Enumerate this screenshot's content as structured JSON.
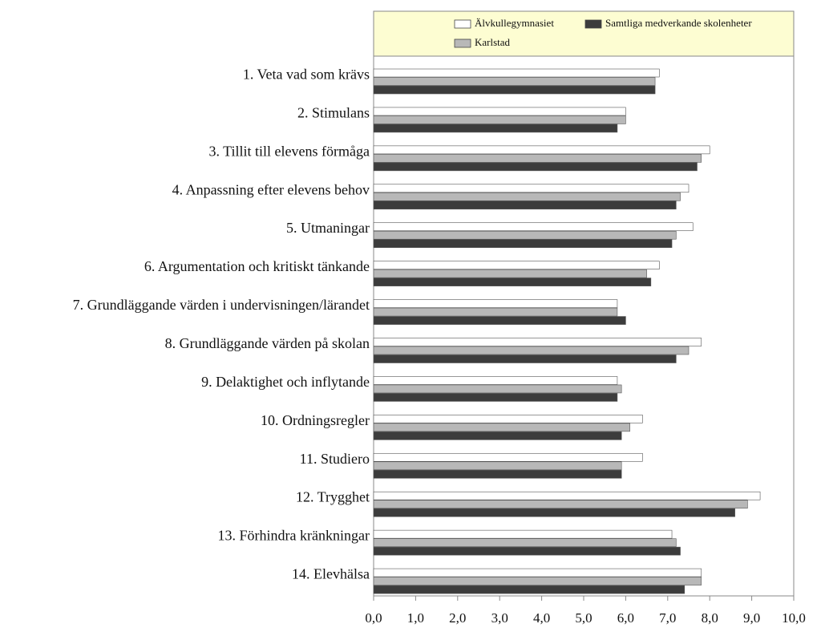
{
  "chart_data": {
    "type": "hbar",
    "categories": [
      "1. Veta vad som krävs",
      "2. Stimulans",
      "3. Tillit till elevens förmåga",
      "4. Anpassning efter elevens behov",
      "5. Utmaningar",
      "6. Argumentation och kritiskt tänkande",
      "7. Grundläggande värden i undervisningen/lärandet",
      "8. Grundläggande värden på skolan",
      "9. Delaktighet och inflytande",
      "10. Ordningsregler",
      "11. Studiero",
      "12. Trygghet",
      "13. Förhindra kränkningar",
      "14. Elevhälsa"
    ],
    "series": [
      {
        "name": "Älvkullegymnasiet",
        "color": "#ffffff",
        "values": [
          6.8,
          6.0,
          8.0,
          7.5,
          7.6,
          6.8,
          5.8,
          7.8,
          5.8,
          6.4,
          6.4,
          9.2,
          7.1,
          7.8
        ]
      },
      {
        "name": "Karlstad",
        "color": "#b8b8b8",
        "values": [
          6.7,
          6.0,
          7.8,
          7.3,
          7.2,
          6.5,
          5.8,
          7.5,
          5.9,
          6.1,
          5.9,
          8.9,
          7.2,
          7.8
        ]
      },
      {
        "name": "Samtliga medverkande skolenheter",
        "color": "#3c3c3c",
        "values": [
          6.7,
          5.8,
          7.7,
          7.2,
          7.1,
          6.6,
          6.0,
          7.2,
          5.8,
          5.9,
          5.9,
          8.6,
          7.3,
          7.4
        ]
      }
    ],
    "xlim": [
      0,
      10
    ],
    "xticks": [
      {
        "value": 0,
        "label": "0,0"
      },
      {
        "value": 1,
        "label": "1,0"
      },
      {
        "value": 2,
        "label": "2,0"
      },
      {
        "value": 3,
        "label": "3,0"
      },
      {
        "value": 4,
        "label": "4,0"
      },
      {
        "value": 5,
        "label": "5,0"
      },
      {
        "value": 6,
        "label": "6,0"
      },
      {
        "value": 7,
        "label": "7,0"
      },
      {
        "value": 8,
        "label": "8,0"
      },
      {
        "value": 9,
        "label": "9,0"
      },
      {
        "value": 10,
        "label": "10,0"
      }
    ],
    "legend": "top"
  }
}
